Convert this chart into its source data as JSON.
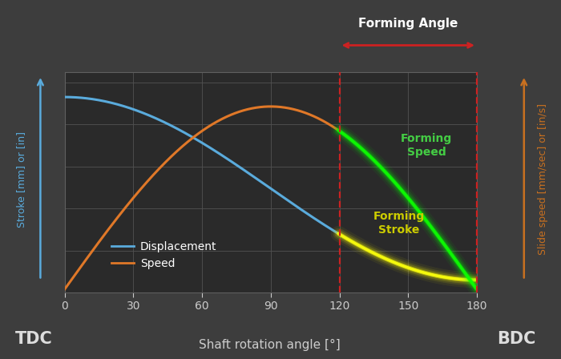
{
  "bg_color": "#3d3d3d",
  "plot_bg_color": "#2a2a2a",
  "grid_color": "#505050",
  "x_min": 0,
  "x_max": 180,
  "x_ticks": [
    0,
    30,
    60,
    90,
    120,
    150,
    180
  ],
  "xlabel": "Shaft rotation angle [°]",
  "ylabel_left": "Stroke [mm] or [in]",
  "ylabel_right": "Slide speed [mm/sec] or [in/s]",
  "tdc_label": "TDC",
  "bdc_label": "BDC",
  "displacement_color": "#5aabdc",
  "speed_color": "#e07828",
  "legend_disp": "Displacement",
  "legend_speed": "Speed",
  "forming_angle_label": "Forming Angle",
  "forming_speed_label": "Forming\nSpeed",
  "forming_stroke_label": "Forming\nStroke",
  "dashed_line_color": "#cc2222",
  "right_arrow_color": "#c87020",
  "forming_speed_text_color": "#44cc44",
  "forming_stroke_text_color": "#cccc00",
  "forming_angle_text_color": "#ffffff",
  "tick_label_color": "#cccccc",
  "xlabel_color": "#cccccc",
  "ylabel_left_color": "#5aabdc",
  "ylabel_right_color": "#c87020",
  "tdc_bdc_color": "#dddddd"
}
